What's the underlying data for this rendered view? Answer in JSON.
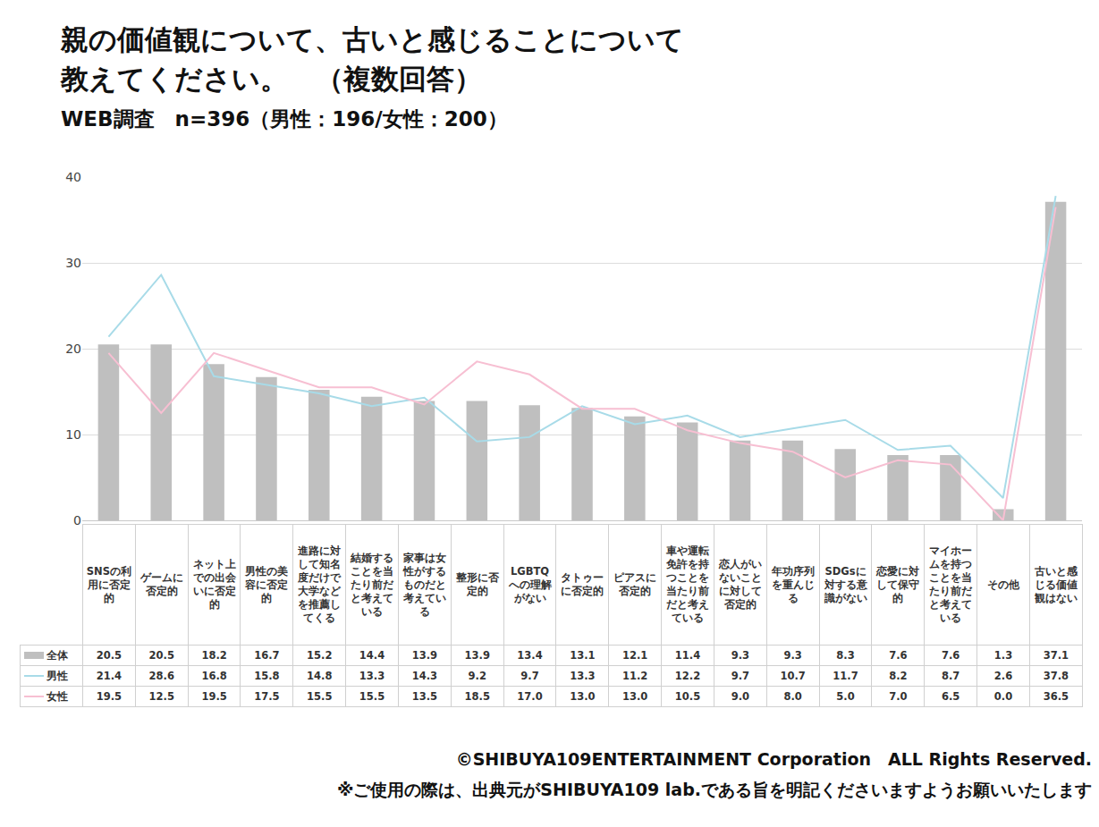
{
  "chart_data": {
    "type": "bar",
    "title": "親の価値観について、古いと感じることについて\n教えてください。　（複数回答）",
    "subtitle": "WEB調査　n=396（男性：196/女性：200）",
    "categories": [
      "SNSの利用に否定的",
      "ゲームに否定的",
      "ネット上での出会いに否定的",
      "男性の美容に否定的",
      "進路に対して知名度だけで大学などを推薦してくる",
      "結婚することを当たり前だと考えている",
      "家事は女性がするものだと考えている",
      "整形に否定的",
      "LGBTQへの理解がない",
      "タトゥーに否定的",
      "ピアスに否定的",
      "車や運転免許を持つことを当たり前だと考えている",
      "恋人がいないことに対して否定的",
      "年功序列を重んじる",
      "SDGsに対する意識がない",
      "恋愛に対して保守的",
      "マイホームを持つことを当たり前だと考えている",
      "その他",
      "古いと感じる価値観はない"
    ],
    "series": [
      {
        "name": "全体",
        "type": "bar",
        "color": "#bfbfbf",
        "values": [
          20.5,
          20.5,
          18.2,
          16.7,
          15.2,
          14.4,
          13.9,
          13.9,
          13.4,
          13.1,
          12.1,
          11.4,
          9.3,
          9.3,
          8.3,
          7.6,
          7.6,
          1.3,
          37.1
        ],
        "value_labels": [
          "20.5",
          "20.5",
          "18.2",
          "16.7",
          "15.2",
          "14.4",
          "13.9",
          "13.9",
          "13.4",
          "13.1",
          "12.1",
          "11.4",
          "9.3",
          "9.3",
          "8.3",
          "7.6",
          "7.6",
          "1.3",
          "37.1"
        ]
      },
      {
        "name": "男性",
        "type": "line",
        "color": "#a8dbe8",
        "values": [
          21.4,
          28.6,
          16.8,
          15.8,
          14.8,
          13.3,
          14.3,
          9.2,
          9.7,
          13.3,
          11.2,
          12.2,
          9.7,
          10.7,
          11.7,
          8.2,
          8.7,
          2.6,
          37.8
        ],
        "value_labels": [
          "21.4",
          "28.6",
          "16.8",
          "15.8",
          "14.8",
          "13.3",
          "14.3",
          "9.2",
          "9.7",
          "13.3",
          "11.2",
          "12.2",
          "9.7",
          "10.7",
          "11.7",
          "8.2",
          "8.7",
          "2.6",
          "37.8"
        ]
      },
      {
        "name": "女性",
        "type": "line",
        "color": "#f7bfd2",
        "values": [
          19.5,
          12.5,
          19.5,
          17.5,
          15.5,
          15.5,
          13.5,
          18.5,
          17.0,
          13.0,
          13.0,
          10.5,
          9.0,
          8.0,
          5.0,
          7.0,
          6.5,
          0.0,
          36.5
        ],
        "value_labels": [
          "19.5",
          "12.5",
          "19.5",
          "17.5",
          "15.5",
          "15.5",
          "13.5",
          "18.5",
          "17.0",
          "13.0",
          "13.0",
          "10.5",
          "9.0",
          "8.0",
          "5.0",
          "7.0",
          "6.5",
          "0.0",
          "36.5"
        ]
      }
    ],
    "ylim": [
      0,
      40
    ],
    "yticks": [
      0,
      10,
      20,
      30,
      40
    ],
    "grid": true,
    "tick_labels": "y",
    "annotations": [
      "©SHIBUYA109ENTERTAINMENT Corporation　ALL Rights Reserved.",
      "※ご使用の際は、出典元がSHIBUYA109 lab.である旨を明記くださいますようお願いいたします"
    ]
  }
}
